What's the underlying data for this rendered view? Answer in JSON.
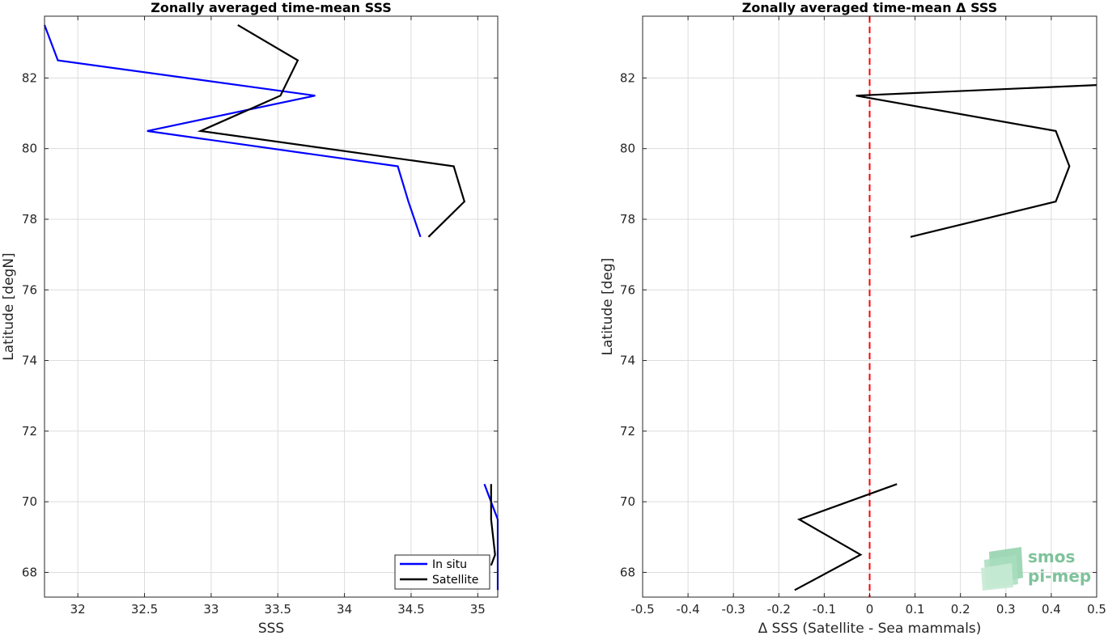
{
  "chart_data": [
    {
      "type": "line",
      "title": "Zonally averaged time-mean SSS",
      "xlabel": "SSS",
      "ylabel": "Latitude [degN]",
      "xlim": [
        31.75,
        35.15
      ],
      "ylim": [
        67.3,
        83.75
      ],
      "xticks": [
        32,
        32.5,
        33,
        33.5,
        34,
        34.5,
        35
      ],
      "xtick_labels": [
        "32",
        "32.5",
        "33",
        "33.5",
        "34",
        "34.5",
        "35"
      ],
      "yticks": [
        68,
        70,
        72,
        74,
        76,
        78,
        80,
        82
      ],
      "ytick_labels": [
        "68",
        "70",
        "72",
        "74",
        "76",
        "78",
        "80",
        "82"
      ],
      "grid": true,
      "legend": "bottom-right",
      "series": [
        {
          "name": "In situ",
          "color": "#0000ff",
          "segments": [
            [
              [
                31.75,
                83.5
              ],
              [
                31.85,
                82.5
              ],
              [
                33.78,
                81.5
              ],
              [
                32.52,
                80.5
              ],
              [
                34.4,
                79.5
              ],
              [
                34.48,
                78.5
              ],
              [
                34.57,
                77.5
              ]
            ],
            [
              [
                35.05,
                70.5
              ],
              [
                35.15,
                69.5
              ],
              [
                35.15,
                68.5
              ],
              [
                35.15,
                67.5
              ]
            ]
          ]
        },
        {
          "name": "Satellite",
          "color": "#000000",
          "segments": [
            [
              [
                33.2,
                83.5
              ],
              [
                33.65,
                82.5
              ],
              [
                33.52,
                81.5
              ],
              [
                32.92,
                80.5
              ],
              [
                34.82,
                79.5
              ],
              [
                34.9,
                78.5
              ],
              [
                34.63,
                77.5
              ]
            ],
            [
              [
                35.1,
                70.5
              ],
              [
                35.1,
                69.5
              ],
              [
                35.13,
                68.5
              ],
              [
                35.1,
                68.2
              ]
            ]
          ]
        }
      ]
    },
    {
      "type": "line",
      "title": "Zonally averaged time-mean Δ SSS",
      "xlabel": "Δ SSS (Satellite - Sea mammals)",
      "ylabel": "Latitude [deg]",
      "xlim": [
        -0.5,
        0.5
      ],
      "ylim": [
        67.3,
        83.75
      ],
      "xticks": [
        -0.5,
        -0.4,
        -0.3,
        -0.2,
        -0.1,
        0,
        0.1,
        0.2,
        0.3,
        0.4,
        0.5
      ],
      "xtick_labels": [
        "-0.5",
        "-0.4",
        "-0.3",
        "-0.2",
        "-0.1",
        "0",
        "0.1",
        "0.2",
        "0.3",
        "0.4",
        "0.5"
      ],
      "yticks": [
        68,
        70,
        72,
        74,
        76,
        78,
        80,
        82
      ],
      "ytick_labels": [
        "68",
        "70",
        "72",
        "74",
        "76",
        "78",
        "80",
        "82"
      ],
      "grid": true,
      "reference_line": {
        "x": 0,
        "color": "#ff0000",
        "style": "dashed"
      },
      "series": [
        {
          "color": "#000000",
          "segments": [
            [
              [
                0.5,
                81.8
              ],
              [
                -0.03,
                81.5
              ],
              [
                0.41,
                80.5
              ],
              [
                0.44,
                79.5
              ],
              [
                0.41,
                78.5
              ],
              [
                0.09,
                77.5
              ]
            ],
            [
              [
                0.06,
                70.5
              ],
              [
                -0.155,
                69.5
              ],
              [
                -0.02,
                68.5
              ],
              [
                -0.165,
                67.5
              ]
            ]
          ]
        }
      ]
    }
  ],
  "logo": {
    "line1": "smos",
    "line2": "pi-mep"
  }
}
